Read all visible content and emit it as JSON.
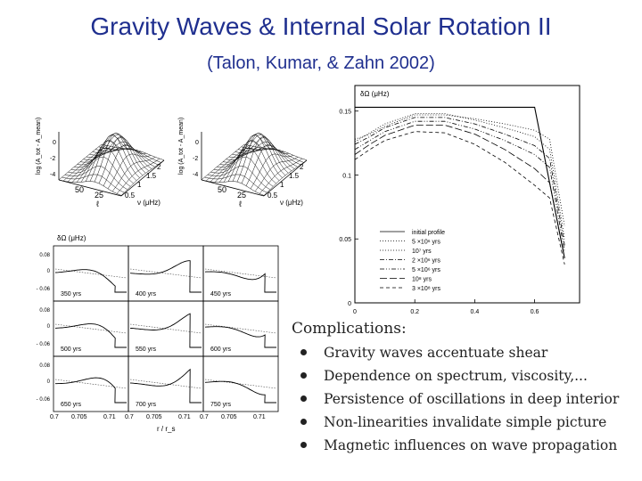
{
  "title": "Gravity Waves & Internal Solar Rotation II",
  "subtitle": "(Talon, Kumar, & Zahn 2002)",
  "surface_plots": {
    "zlabel": "log (A_tot - A_mean)",
    "z_ticks": [
      "0",
      "-2",
      "-4"
    ],
    "x_label": "ℓ",
    "x_ticks": [
      "50",
      "25"
    ],
    "y_label": "ν (μHz)",
    "y_ticks": [
      "0.5",
      "1",
      "1.5",
      "2"
    ]
  },
  "grid_plots": {
    "ylabel": "δΩ (μHz)",
    "xlabel": "r / r_s",
    "y_ticks": [
      "0.08",
      "0",
      "- 0.06"
    ],
    "x_ticks": [
      "0.7",
      "0.705",
      "0.71"
    ],
    "panel_labels": [
      "350 yrs",
      "400 yrs",
      "450 yrs",
      "500 yrs",
      "550 yrs",
      "600 yrs",
      "650 yrs",
      "700 yrs",
      "750 yrs"
    ]
  },
  "chart_data": {
    "type": "line",
    "title": "",
    "xlabel": "",
    "ylabel": "δΩ (μHz)",
    "xlim": [
      0,
      0.75
    ],
    "ylim": [
      0,
      0.17
    ],
    "x_ticks": [
      "0",
      "0.2",
      "0.4",
      "0.6"
    ],
    "y_ticks": [
      "0",
      "0.05",
      "0.1",
      "0.15"
    ],
    "legend_position": "lower-right",
    "series": [
      {
        "name": "initial profile",
        "style": "solid",
        "x": [
          0.0,
          0.6,
          0.7
        ],
        "y": [
          0.153,
          0.153,
          0.035
        ]
      },
      {
        "name": "5 ×10⁶ yrs",
        "style": "dotted",
        "x": [
          0.0,
          0.05,
          0.1,
          0.2,
          0.3,
          0.4,
          0.5,
          0.6,
          0.65,
          0.7
        ],
        "y": [
          0.128,
          0.132,
          0.138,
          0.147,
          0.147,
          0.144,
          0.14,
          0.135,
          0.128,
          0.06
        ]
      },
      {
        "name": "10⁷ yrs",
        "style": "dotted",
        "x": [
          0.0,
          0.05,
          0.1,
          0.2,
          0.3,
          0.4,
          0.5,
          0.6,
          0.65,
          0.7
        ],
        "y": [
          0.126,
          0.133,
          0.14,
          0.148,
          0.148,
          0.143,
          0.137,
          0.13,
          0.12,
          0.05
        ]
      },
      {
        "name": "2 ×10⁶ yrs",
        "style": "dash-dot",
        "x": [
          0.0,
          0.05,
          0.1,
          0.2,
          0.3,
          0.4,
          0.5,
          0.6,
          0.65,
          0.7
        ],
        "y": [
          0.124,
          0.13,
          0.137,
          0.145,
          0.145,
          0.14,
          0.132,
          0.123,
          0.113,
          0.045
        ]
      },
      {
        "name": "5 ×10⁶ yrs",
        "style": "dash-dot-dot",
        "x": [
          0.0,
          0.05,
          0.1,
          0.2,
          0.3,
          0.4,
          0.5,
          0.6,
          0.65,
          0.7
        ],
        "y": [
          0.12,
          0.127,
          0.134,
          0.142,
          0.142,
          0.136,
          0.127,
          0.116,
          0.106,
          0.04
        ]
      },
      {
        "name": "10⁸ yrs",
        "style": "long-dash",
        "x": [
          0.0,
          0.05,
          0.1,
          0.2,
          0.3,
          0.4,
          0.5,
          0.6,
          0.65,
          0.7
        ],
        "y": [
          0.116,
          0.124,
          0.131,
          0.139,
          0.139,
          0.132,
          0.12,
          0.105,
          0.094,
          0.035
        ]
      },
      {
        "name": "3 ×10⁸ yrs",
        "style": "dashed",
        "x": [
          0.0,
          0.05,
          0.1,
          0.2,
          0.3,
          0.4,
          0.5,
          0.6,
          0.65,
          0.7
        ],
        "y": [
          0.112,
          0.12,
          0.127,
          0.134,
          0.133,
          0.124,
          0.11,
          0.092,
          0.082,
          0.03
        ]
      }
    ]
  },
  "complications": {
    "heading": "Complications:",
    "items": [
      "Gravity waves accentuate shear",
      "Dependence on spectrum, viscosity,...",
      "Persistence of oscillations in deep interior",
      "Non-linearities invalidate simple picture",
      "Magnetic influences on wave propagation"
    ]
  }
}
